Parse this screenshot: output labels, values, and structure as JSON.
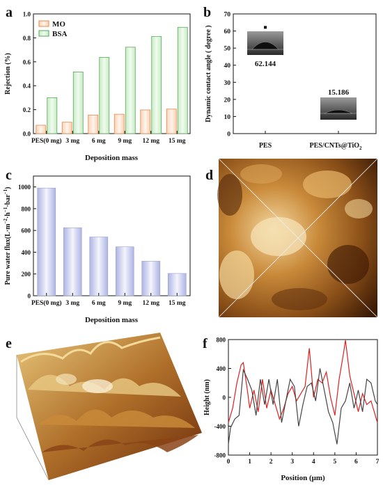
{
  "panel_letters": {
    "a": "a",
    "b": "b",
    "c": "c",
    "d": "d",
    "e": "e",
    "f": "f"
  },
  "chart_data": [
    {
      "panel": "a",
      "type": "bar",
      "categories": [
        "PES(0 mg)",
        "3 mg",
        "6 mg",
        "9 mg",
        "12 mg",
        "15 mg"
      ],
      "series": [
        {
          "name": "MO",
          "values": [
            0.07,
            0.095,
            0.155,
            0.162,
            0.198,
            0.205
          ]
        },
        {
          "name": "BSA",
          "values": [
            0.3,
            0.515,
            0.637,
            0.722,
            0.812,
            0.888
          ]
        }
      ],
      "xlabel": "Deposition mass",
      "ylabel": "Rejection (%)",
      "ylim": [
        0,
        1.0
      ],
      "yticks": [
        "0.0",
        "0.2",
        "0.4",
        "0.6",
        "0.8",
        "1.0"
      ],
      "legend": "top-left",
      "colors": {
        "MO_fill": "#fde2cc",
        "MO_stroke": "#e8884a",
        "BSA_fill": "#d8f2d6",
        "BSA_stroke": "#5aa85a"
      }
    },
    {
      "panel": "b",
      "type": "scatter",
      "categories": [
        "PES",
        "PES/CNTs@TiO2"
      ],
      "category_display": [
        {
          "main": "PES",
          "sub": ""
        },
        {
          "main": "PES/CNTs@TiO",
          "sub": "2"
        }
      ],
      "values": [
        62.144,
        15.186
      ],
      "annotations": [
        "62.144",
        "15.186"
      ],
      "ylabel": "Dynamic contact angle ( degree )",
      "ylim": [
        0,
        70
      ],
      "yticks": [
        "0",
        "10",
        "20",
        "30",
        "40",
        "50",
        "60",
        "70"
      ],
      "colors": {
        "marker": "#111111"
      }
    },
    {
      "panel": "c",
      "type": "bar",
      "categories": [
        "PES(0 mg)",
        "3 mg",
        "6 mg",
        "9 mg",
        "12 mg",
        "15 mg"
      ],
      "values": [
        990,
        625,
        540,
        450,
        318,
        205
      ],
      "xlabel": "Deposition mass",
      "ylabel_parts": [
        "Pure water flux(L·m",
        "−2",
        "·h",
        "−1",
        "·bar",
        "−1",
        ")"
      ],
      "ylim": [
        0,
        1100
      ],
      "yticks": [
        "0",
        "200",
        "400",
        "600",
        "800",
        "1000"
      ],
      "colors": {
        "bar_top": "#b9bfe8",
        "bar_mid": "#f4f5fc",
        "bar_stroke": "#9aa0cf"
      }
    },
    {
      "panel": "f",
      "type": "line",
      "xlabel": "Position (μm)",
      "ylabel": "Height (nm)",
      "xlim": [
        0,
        7
      ],
      "ylim": [
        -800,
        800
      ],
      "xticks": [
        "0",
        "1",
        "2",
        "3",
        "4",
        "5",
        "6",
        "7"
      ],
      "yticks": [
        "-800",
        "-400",
        "0",
        "400",
        "800"
      ],
      "series": [
        {
          "color": "#e02020",
          "x": [
            0,
            0.2,
            0.4,
            0.6,
            0.7,
            0.9,
            1.0,
            1.2,
            1.4,
            1.6,
            1.8,
            2.0,
            2.2,
            2.4,
            2.6,
            2.8,
            3.0,
            3.2,
            3.4,
            3.6,
            3.8,
            3.9,
            4.0,
            4.2,
            4.4,
            4.6,
            4.8,
            5.0,
            5.2,
            5.4,
            5.5,
            5.7,
            5.9,
            6.1,
            6.3,
            6.5,
            6.7,
            6.9,
            7.0
          ],
          "y": [
            -350,
            -150,
            200,
            450,
            480,
            80,
            -150,
            100,
            -200,
            250,
            -150,
            100,
            -100,
            -300,
            -150,
            50,
            150,
            -50,
            50,
            150,
            680,
            350,
            0,
            250,
            200,
            350,
            0,
            -250,
            250,
            600,
            790,
            300,
            50,
            -200,
            50,
            -100,
            -50,
            -250,
            -350
          ]
        },
        {
          "color": "#444444",
          "x": [
            0,
            0.1,
            0.3,
            0.5,
            0.7,
            0.9,
            1.1,
            1.3,
            1.5,
            1.7,
            1.9,
            2.1,
            2.3,
            2.5,
            2.7,
            2.9,
            3.1,
            3.3,
            3.5,
            3.7,
            3.9,
            4.1,
            4.3,
            4.5,
            4.7,
            4.9,
            5.1,
            5.3,
            5.5,
            5.7,
            5.9,
            6.1,
            6.3,
            6.5,
            6.7,
            6.9,
            7.0
          ],
          "y": [
            -650,
            -420,
            -300,
            -250,
            380,
            250,
            100,
            -250,
            250,
            -100,
            250,
            -100,
            250,
            -350,
            -50,
            250,
            150,
            -400,
            -100,
            150,
            200,
            -50,
            400,
            100,
            -200,
            -350,
            -650,
            -150,
            -50,
            200,
            -150,
            100,
            -200,
            250,
            200,
            -50,
            -100
          ]
        }
      ]
    }
  ]
}
